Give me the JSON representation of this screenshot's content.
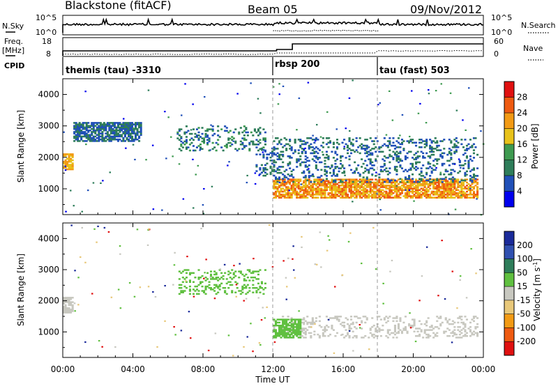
{
  "header": {
    "station": "Blackstone (fitACF)",
    "beam": "Beam 05",
    "date": "09/Nov/2012"
  },
  "noise_panel": {
    "left_label": "N.Sky",
    "right_label": "N.Search",
    "left_ticks": [
      "10^5",
      "10^0"
    ],
    "right_ticks": [
      "10^5",
      "10^0"
    ]
  },
  "freq_panel": {
    "left_label_1": "Freq.",
    "left_label_2": "[MHz]",
    "right_label": "Nave",
    "left_ticks": [
      "18",
      "8"
    ],
    "right_ticks": [
      "60",
      "0"
    ],
    "cpid_label": "CPID"
  },
  "cpid_segments": [
    {
      "label": "themis (tau) -3310",
      "start_hour": 0
    },
    {
      "label": "rbsp 200",
      "start_hour": 12
    },
    {
      "label": "tau (fast) 503",
      "start_hour": 18
    }
  ],
  "chart_data": [
    {
      "type": "heatmap",
      "title": "",
      "ylabel": "Slant Range [km]",
      "xlabel": "",
      "xlim": [
        0,
        24
      ],
      "ylim": [
        180,
        4500
      ],
      "y_ticks": [
        1000,
        2000,
        3000,
        4000
      ],
      "colorbar": {
        "label": "Power [dB]",
        "ticks": [
          "4",
          "8",
          "12",
          "16",
          "20",
          "24",
          "28"
        ],
        "colors": [
          "#0000ee",
          "#2050b8",
          "#2e7d5a",
          "#3e9a50",
          "#e8c21a",
          "#f29a14",
          "#ee5a10",
          "#e01010"
        ]
      },
      "features": [
        {
          "time_range": [
            0.0,
            0.6
          ],
          "slant_range_km": [
            1600,
            2100
          ],
          "power_db": [
            16,
            24
          ]
        },
        {
          "time_range": [
            0.6,
            4.5
          ],
          "slant_range_km": [
            2500,
            3100
          ],
          "power_db": [
            4,
            12
          ]
        },
        {
          "time_range": [
            6.5,
            11.5
          ],
          "slant_range_km": [
            2200,
            3000
          ],
          "power_db": [
            4,
            14
          ]
        },
        {
          "time_range": [
            11.0,
            12.0
          ],
          "slant_range_km": [
            1400,
            2300
          ],
          "power_db": [
            4,
            12
          ]
        },
        {
          "time_range": [
            12.0,
            23.7
          ],
          "slant_range_km": [
            700,
            1300
          ],
          "power_db": [
            16,
            28
          ]
        },
        {
          "time_range": [
            12.0,
            23.7
          ],
          "slant_range_km": [
            1200,
            2600
          ],
          "power_db": [
            4,
            12
          ]
        }
      ]
    },
    {
      "type": "heatmap",
      "title": "",
      "ylabel": "Slant Range [km]",
      "xlabel": "Time UT",
      "xlim": [
        0,
        24
      ],
      "ylim": [
        180,
        4500
      ],
      "y_ticks": [
        1000,
        2000,
        3000,
        4000
      ],
      "x_ticks": [
        "00:00",
        "04:00",
        "08:00",
        "12:00",
        "16:00",
        "20:00",
        "00:00"
      ],
      "colorbar": {
        "label": "Velocity [m s^-1]",
        "ticks": [
          "200",
          "100",
          "50",
          "15",
          "-15",
          "-50",
          "-100",
          "-200"
        ],
        "colors": [
          "#1a2a9a",
          "#3050b0",
          "#2e7d5a",
          "#60c040",
          "#c8c8c0",
          "#e8c87a",
          "#f29a14",
          "#ee5a10",
          "#e01010"
        ]
      },
      "features": [
        {
          "time_range": [
            0.0,
            0.6
          ],
          "slant_range_km": [
            1600,
            2100
          ],
          "velocity_ms": [
            -15,
            15
          ]
        },
        {
          "time_range": [
            6.5,
            11.5
          ],
          "slant_range_km": [
            2200,
            3000
          ],
          "velocity_ms": [
            15,
            50
          ]
        },
        {
          "time_range": [
            12.0,
            23.7
          ],
          "slant_range_km": [
            800,
            1500
          ],
          "velocity_ms": [
            -15,
            15
          ]
        },
        {
          "time_range": [
            12.0,
            13.5
          ],
          "slant_range_km": [
            800,
            1400
          ],
          "velocity_ms": [
            15,
            50
          ]
        }
      ]
    }
  ]
}
